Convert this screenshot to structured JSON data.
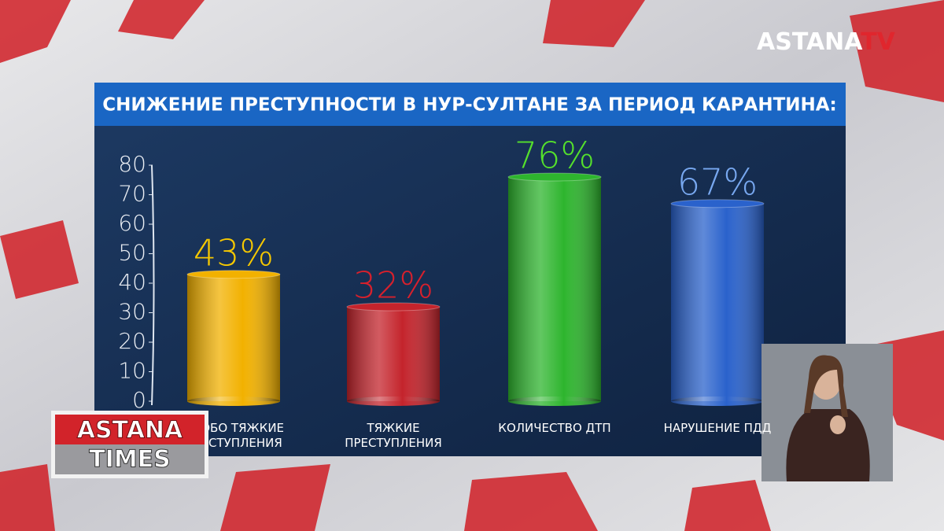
{
  "channel_logo": {
    "name": "ASTANA",
    "suffix": "TV"
  },
  "program_logo": {
    "line1": "ASTANA",
    "line2": "TIMES"
  },
  "chart_data": {
    "type": "bar",
    "title": "СНИЖЕНИЕ ПРЕСТУПНОСТИ В НУР-СУЛТАНЕ ЗА ПЕРИОД  КАРАНТИНА:",
    "categories": [
      "ОСОБО ТЯЖКИЕ ПРЕСТУПЛЕНИЯ",
      "ТЯЖКИЕ ПРЕСТУПЛЕНИЯ",
      "КОЛИЧЕСТВО ДТП",
      "НАРУШЕНИЕ ПДД"
    ],
    "values": [
      43,
      32,
      76,
      67
    ],
    "value_labels": [
      "43%",
      "32%",
      "76%",
      "67%"
    ],
    "colors": [
      "#f2b100",
      "#c4242c",
      "#2eb52e",
      "#2a62cc"
    ],
    "value_label_colors": [
      "#f6c800",
      "#d8202c",
      "#55e02c",
      "#78a8f0"
    ],
    "ylim": [
      0,
      80
    ],
    "yticks": [
      0,
      10,
      20,
      30,
      40,
      50,
      60,
      70,
      80
    ],
    "grid": false
  }
}
